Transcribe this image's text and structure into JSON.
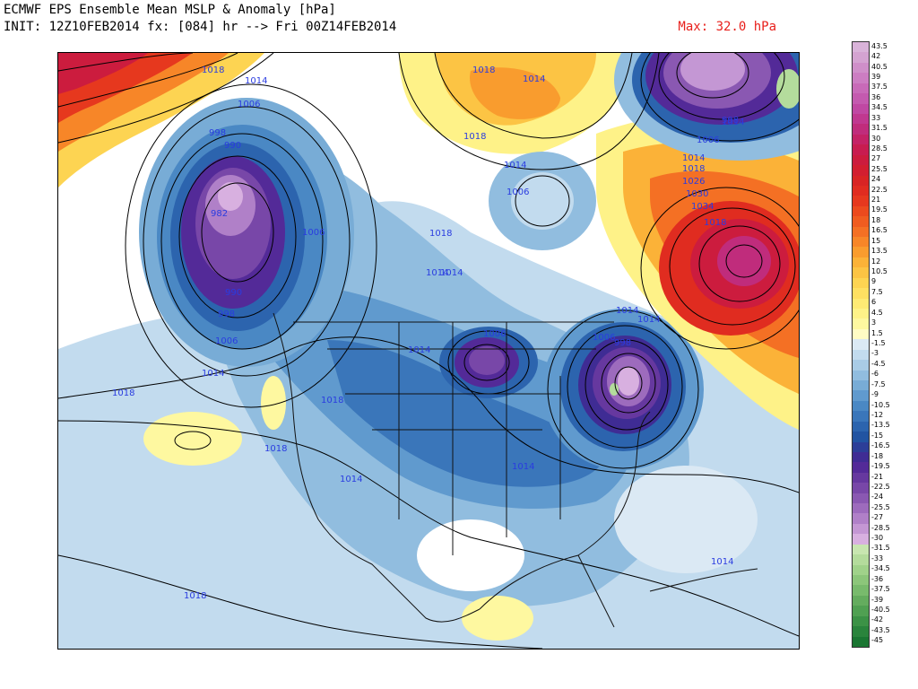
{
  "header": {
    "line1": "ECMWF EPS Ensemble Mean MSLP & Anomaly [hPa]",
    "line2": "INIT: 12Z10FEB2014 fx: [084] hr --> Fri 00Z14FEB2014",
    "max_label": "Max: 32.0 hPa"
  },
  "colorbar": {
    "labels": [
      "43.5",
      "42",
      "40.5",
      "39",
      "37.5",
      "36",
      "34.5",
      "33",
      "31.5",
      "30",
      "28.5",
      "27",
      "25.5",
      "24",
      "22.5",
      "21",
      "19.5",
      "18",
      "16.5",
      "15",
      "13.5",
      "12",
      "10.5",
      "9",
      "7.5",
      "6",
      "4.5",
      "3",
      "1.5",
      "-1.5",
      "-3",
      "-4.5",
      "-6",
      "-7.5",
      "-9",
      "-10.5",
      "-12",
      "-13.5",
      "-15",
      "-16.5",
      "-18",
      "-19.5",
      "-21",
      "-22.5",
      "-24",
      "-25.5",
      "-27",
      "-28.5",
      "-30",
      "-31.5",
      "-33",
      "-34.5",
      "-36",
      "-37.5",
      "-39",
      "-40.5",
      "-42",
      "-43.5",
      "-45"
    ],
    "colors": [
      "#d9b3d9",
      "#d4a3d1",
      "#cf8fc9",
      "#cc7dc2",
      "#c86ab8",
      "#c45aaf",
      "#c048a3",
      "#c03890",
      "#c02c7c",
      "#c42266",
      "#c81c50",
      "#cc1c3e",
      "#d21e30",
      "#d82424",
      "#e02c20",
      "#e6381e",
      "#ec4a1e",
      "#f05c20",
      "#f47024",
      "#f78628",
      "#f99c2e",
      "#fbb238",
      "#fcc444",
      "#fdd452",
      "#fee062",
      "#feea74",
      "#fef288",
      "#fef8a0",
      "#fffcc4",
      "#dbe9f4",
      "#c2dbee",
      "#a9cce6",
      "#91bddf",
      "#78acd6",
      "#609ace",
      "#4a88c4",
      "#3a76ba",
      "#2c64ae",
      "#2254a2",
      "#2c3e98",
      "#3f2c94",
      "#532a98",
      "#66389f",
      "#7847a8",
      "#8a58b2",
      "#9d6bbd",
      "#b080c8",
      "#c497d4",
      "#d8b0e0",
      "#c8e6b0",
      "#b4dc9c",
      "#a0d28a",
      "#8cc67a",
      "#78ba6c",
      "#64ac5e",
      "#50a052",
      "#3c9246",
      "#2a843c",
      "#1a7632"
    ]
  },
  "isobars": [
    {
      "text": "1018"
    },
    {
      "text": "1014"
    },
    {
      "text": "1006"
    },
    {
      "text": "998"
    },
    {
      "text": "990"
    },
    {
      "text": "982"
    },
    {
      "text": "990"
    },
    {
      "text": "998"
    },
    {
      "text": "1006"
    },
    {
      "text": "1014"
    },
    {
      "text": "1018"
    },
    {
      "text": "1006"
    },
    {
      "text": "1018"
    },
    {
      "text": "1014"
    },
    {
      "text": "1018"
    },
    {
      "text": "1014"
    },
    {
      "text": "1018"
    },
    {
      "text": "1014"
    },
    {
      "text": "1006"
    },
    {
      "text": "1014"
    },
    {
      "text": "1018"
    },
    {
      "text": "1014"
    },
    {
      "text": "1006"
    },
    {
      "text": "998"
    },
    {
      "text": "1006"
    },
    {
      "text": "1014"
    },
    {
      "text": "1018"
    },
    {
      "text": "1026"
    },
    {
      "text": "1030"
    },
    {
      "text": "1034"
    },
    {
      "text": "1018"
    },
    {
      "text": "1014"
    },
    {
      "text": "1006"
    },
    {
      "text": "1014"
    },
    {
      "text": "1018"
    },
    {
      "text": "1014"
    },
    {
      "text": "1014"
    },
    {
      "text": "1018"
    },
    {
      "text": "1014"
    },
    {
      "text": "1014"
    },
    {
      "text": "998"
    }
  ]
}
